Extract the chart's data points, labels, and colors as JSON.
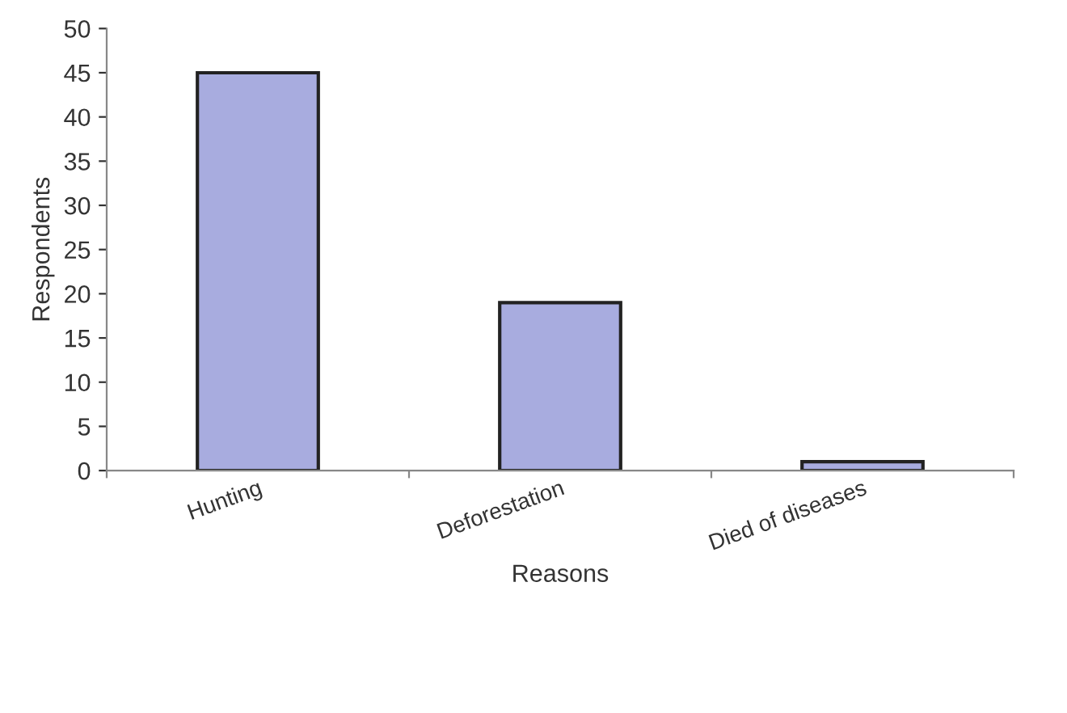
{
  "chart_data": {
    "type": "bar",
    "xlabel": "Reasons",
    "ylabel": "Respondents",
    "categories": [
      "Hunting",
      "Deforestation",
      "Died of diseases"
    ],
    "values": [
      45,
      19,
      1
    ],
    "color": "#a8acdf",
    "ylim": [
      0,
      50
    ],
    "yticks": [
      0,
      5,
      10,
      15,
      20,
      25,
      30,
      35,
      40,
      45,
      50
    ],
    "grid": false
  }
}
